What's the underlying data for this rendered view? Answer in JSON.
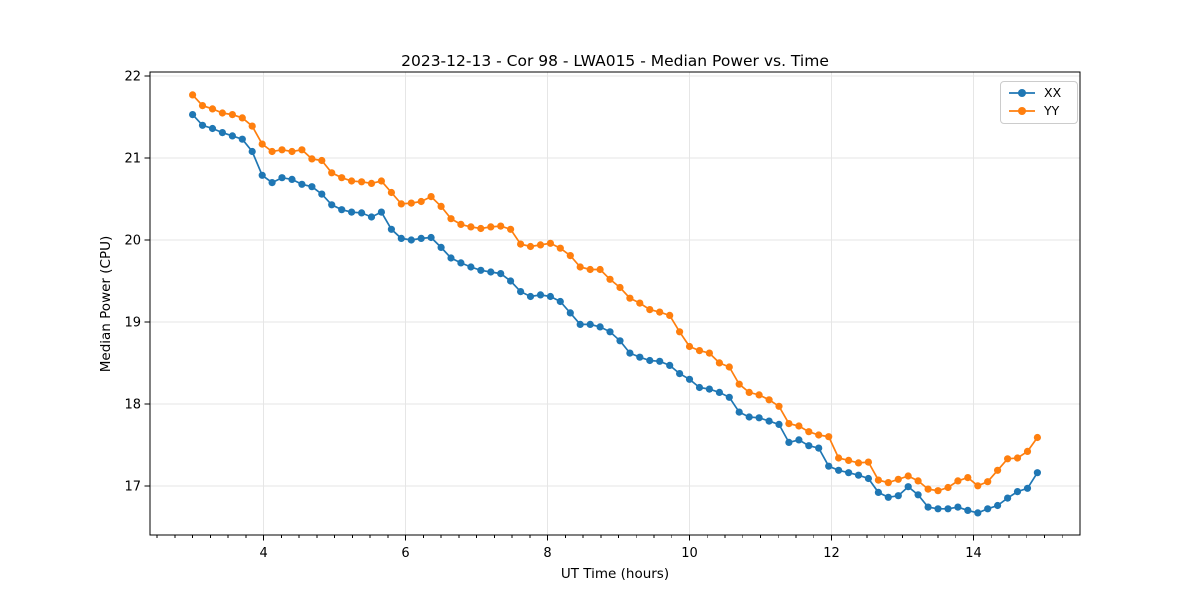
{
  "figure": {
    "background": "#ffffff"
  },
  "chart_data": {
    "type": "line",
    "title": "2023-12-13 - Cor 98 - LWA015 - Median Power vs. Time",
    "xlabel": "UT Time (hours)",
    "ylabel": "Median Power (CPU)",
    "xlim": [
      2.4,
      15.5
    ],
    "ylim": [
      16.4,
      22.05
    ],
    "x_ticks": [
      4,
      6,
      8,
      10,
      12,
      14
    ],
    "x_minor_tick_step": 0.25,
    "y_ticks": [
      17,
      18,
      19,
      20,
      21,
      22
    ],
    "grid": true,
    "grid_color": "#e6e6e6",
    "axis_color": "#000000",
    "legend_position": "upper right",
    "x": [
      3.0,
      3.14,
      3.28,
      3.42,
      3.56,
      3.7,
      3.84,
      3.98,
      4.12,
      4.26,
      4.4,
      4.54,
      4.68,
      4.82,
      4.96,
      5.1,
      5.24,
      5.38,
      5.52,
      5.66,
      5.8,
      5.94,
      6.08,
      6.22,
      6.36,
      6.5,
      6.64,
      6.78,
      6.92,
      7.06,
      7.2,
      7.34,
      7.48,
      7.62,
      7.76,
      7.9,
      8.04,
      8.18,
      8.32,
      8.46,
      8.6,
      8.74,
      8.88,
      9.02,
      9.16,
      9.3,
      9.44,
      9.58,
      9.72,
      9.86,
      10.0,
      10.14,
      10.28,
      10.42,
      10.56,
      10.7,
      10.84,
      10.98,
      11.12,
      11.26,
      11.4,
      11.54,
      11.68,
      11.82,
      11.96,
      12.1,
      12.24,
      12.38,
      12.52,
      12.66,
      12.8,
      12.94,
      13.08,
      13.22,
      13.36,
      13.5,
      13.64,
      13.78,
      13.92,
      14.06,
      14.2,
      14.34,
      14.48,
      14.62,
      14.76,
      14.9
    ],
    "series": [
      {
        "name": "XX",
        "color": "#1f77b4",
        "values": [
          21.53,
          21.4,
          21.36,
          21.31,
          21.27,
          21.23,
          21.08,
          20.79,
          20.7,
          20.76,
          20.74,
          20.68,
          20.65,
          20.56,
          20.43,
          20.37,
          20.34,
          20.33,
          20.28,
          20.34,
          20.13,
          20.02,
          20.0,
          20.02,
          20.03,
          19.91,
          19.78,
          19.72,
          19.67,
          19.63,
          19.61,
          19.59,
          19.5,
          19.37,
          19.31,
          19.33,
          19.31,
          19.25,
          19.11,
          18.97,
          18.97,
          18.94,
          18.88,
          18.77,
          18.62,
          18.57,
          18.53,
          18.52,
          18.47,
          18.37,
          18.3,
          18.2,
          18.18,
          18.14,
          18.08,
          17.9,
          17.84,
          17.83,
          17.79,
          17.75,
          17.53,
          17.56,
          17.49,
          17.46,
          17.24,
          17.19,
          17.16,
          17.13,
          17.09,
          16.92,
          16.86,
          16.88,
          16.99,
          16.89,
          16.74,
          16.72,
          16.72,
          16.74,
          16.7,
          16.67,
          16.72,
          16.76,
          16.85,
          16.93,
          16.97,
          17.16
        ]
      },
      {
        "name": "YY",
        "color": "#ff7f0e",
        "values": [
          21.77,
          21.64,
          21.6,
          21.55,
          21.53,
          21.49,
          21.39,
          21.17,
          21.08,
          21.1,
          21.08,
          21.1,
          20.99,
          20.97,
          20.82,
          20.76,
          20.72,
          20.71,
          20.69,
          20.72,
          20.58,
          20.44,
          20.45,
          20.47,
          20.53,
          20.41,
          20.26,
          20.19,
          20.16,
          20.14,
          20.16,
          20.17,
          20.13,
          19.95,
          19.92,
          19.94,
          19.96,
          19.9,
          19.81,
          19.67,
          19.64,
          19.64,
          19.52,
          19.42,
          19.29,
          19.23,
          19.15,
          19.12,
          19.08,
          18.88,
          18.7,
          18.65,
          18.62,
          18.5,
          18.45,
          18.24,
          18.14,
          18.11,
          18.05,
          17.97,
          17.76,
          17.73,
          17.66,
          17.62,
          17.6,
          17.34,
          17.31,
          17.28,
          17.29,
          17.07,
          17.04,
          17.08,
          17.12,
          17.06,
          16.96,
          16.94,
          16.98,
          17.06,
          17.1,
          17.0,
          17.05,
          17.19,
          17.33,
          17.34,
          17.42,
          17.59
        ]
      }
    ]
  }
}
